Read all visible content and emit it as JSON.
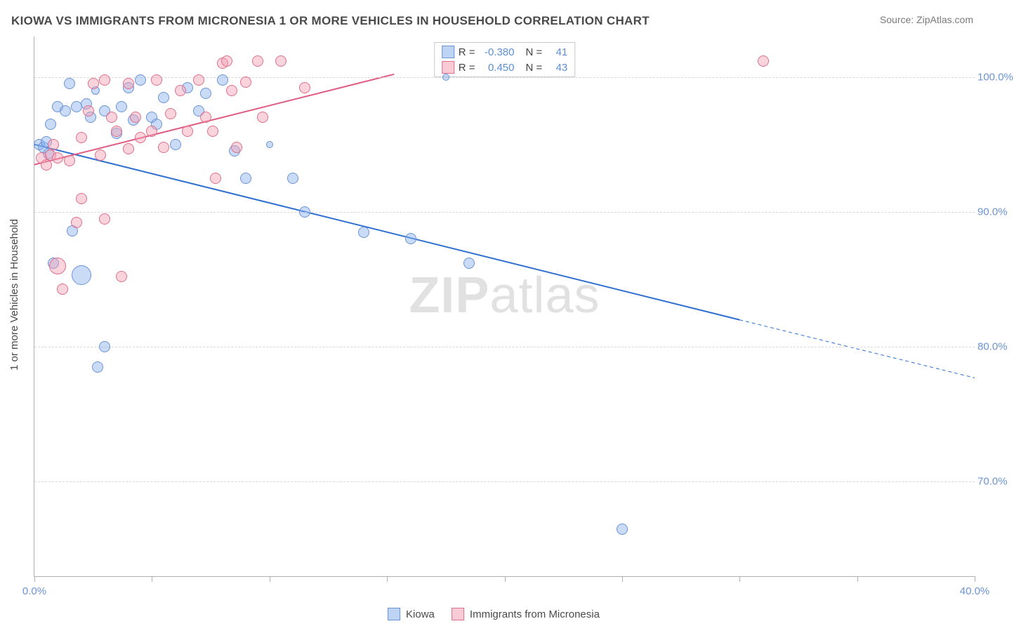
{
  "title": "KIOWA VS IMMIGRANTS FROM MICRONESIA 1 OR MORE VEHICLES IN HOUSEHOLD CORRELATION CHART",
  "source": "Source: ZipAtlas.com",
  "ylabel": "1 or more Vehicles in Household",
  "watermark_a": "ZIP",
  "watermark_b": "atlas",
  "chart": {
    "type": "scatter",
    "background_color": "#ffffff",
    "grid_color": "#d8d8d8",
    "axis_color": "#b0b0b0",
    "tick_label_color": "#6b94d6",
    "label_fontsize": 15,
    "title_fontsize": 17,
    "xlim": [
      0,
      40
    ],
    "xticks": [
      0,
      5,
      10,
      15,
      20,
      25,
      30,
      35,
      40
    ],
    "xlabels": {
      "0": "0.0%",
      "40": "40.0%"
    },
    "ylim": [
      63,
      103
    ],
    "yticks": [
      70,
      80,
      90,
      100
    ],
    "ylabel_fmt": [
      {
        "v": 70,
        "t": "70.0%"
      },
      {
        "v": 80,
        "t": "80.0%"
      },
      {
        "v": 90,
        "t": "90.0%"
      },
      {
        "v": 100,
        "t": "100.0%"
      }
    ],
    "series": [
      {
        "name": "Kiowa",
        "marker": "circle",
        "size": 16,
        "fill": "rgba(135,176,235,0.45)",
        "stroke": "#6b94d6",
        "trend_color": "#2f6fd1",
        "trend_width": 2,
        "trend": {
          "x1": 0,
          "y1": 95.0,
          "x2": 30,
          "y2": 82.0
        },
        "trend_ext": {
          "x1": 30,
          "y1": 82.0,
          "x2": 40,
          "y2": 77.7,
          "dash": "5,4"
        },
        "points": [
          [
            0.2,
            95.0
          ],
          [
            0.4,
            94.8
          ],
          [
            0.5,
            95.2
          ],
          [
            0.6,
            94.3
          ],
          [
            0.7,
            96.5
          ],
          [
            0.8,
            86.2
          ],
          [
            1.0,
            97.8
          ],
          [
            1.3,
            97.5
          ],
          [
            1.5,
            99.5
          ],
          [
            1.6,
            88.6
          ],
          [
            1.8,
            97.8
          ],
          [
            2.0,
            85.3,
            28
          ],
          [
            2.2,
            98.0
          ],
          [
            2.4,
            97.0
          ],
          [
            2.6,
            99.0,
            12
          ],
          [
            2.7,
            78.5
          ],
          [
            3.0,
            80.0
          ],
          [
            3.0,
            97.5
          ],
          [
            3.5,
            95.8
          ],
          [
            3.7,
            97.8
          ],
          [
            4.0,
            99.2
          ],
          [
            4.2,
            96.8
          ],
          [
            4.5,
            99.8
          ],
          [
            5.0,
            97.0
          ],
          [
            5.2,
            96.5
          ],
          [
            5.5,
            98.5
          ],
          [
            6.0,
            95.0
          ],
          [
            6.5,
            99.2
          ],
          [
            7.0,
            97.5
          ],
          [
            7.3,
            98.8
          ],
          [
            8.0,
            99.8
          ],
          [
            8.5,
            94.5
          ],
          [
            9.0,
            92.5
          ],
          [
            10.0,
            95.0,
            10
          ],
          [
            11.0,
            92.5
          ],
          [
            11.5,
            90.0
          ],
          [
            14.0,
            88.5
          ],
          [
            16.0,
            88.0
          ],
          [
            17.5,
            100.0,
            10
          ],
          [
            18.5,
            86.2
          ],
          [
            25.0,
            66.5
          ]
        ]
      },
      {
        "name": "Immigrants from Micronesia",
        "marker": "circle",
        "size": 16,
        "fill": "rgba(244,160,180,0.45)",
        "stroke": "#e06f8b",
        "trend_color": "#e05b82",
        "trend_width": 2,
        "trend": {
          "x1": 0,
          "y1": 93.5,
          "x2": 15.3,
          "y2": 100.2
        },
        "points": [
          [
            0.3,
            94.0
          ],
          [
            0.5,
            93.5
          ],
          [
            0.7,
            94.2
          ],
          [
            0.8,
            95.0
          ],
          [
            1.0,
            94.0
          ],
          [
            1.0,
            86.0,
            24
          ],
          [
            1.2,
            84.3
          ],
          [
            1.5,
            93.8
          ],
          [
            1.8,
            89.2
          ],
          [
            2.0,
            91.0
          ],
          [
            2.0,
            95.5
          ],
          [
            2.3,
            97.5
          ],
          [
            2.5,
            99.5
          ],
          [
            2.8,
            94.2
          ],
          [
            3.0,
            99.8
          ],
          [
            3.0,
            89.5
          ],
          [
            3.3,
            97.0
          ],
          [
            3.5,
            96.0
          ],
          [
            3.7,
            85.2
          ],
          [
            4.0,
            99.5
          ],
          [
            4.0,
            94.7
          ],
          [
            4.3,
            97.0
          ],
          [
            4.5,
            95.5
          ],
          [
            5.0,
            96.0
          ],
          [
            5.2,
            99.8
          ],
          [
            5.5,
            94.8
          ],
          [
            5.8,
            97.3
          ],
          [
            6.2,
            99.0
          ],
          [
            6.5,
            96.0
          ],
          [
            7.0,
            99.8
          ],
          [
            7.3,
            97.0
          ],
          [
            7.6,
            96.0
          ],
          [
            7.7,
            92.5
          ],
          [
            8.0,
            101.0
          ],
          [
            8.2,
            101.2
          ],
          [
            8.4,
            99.0
          ],
          [
            8.6,
            94.8
          ],
          [
            9.0,
            99.6
          ],
          [
            9.5,
            101.2
          ],
          [
            9.7,
            97.0
          ],
          [
            10.5,
            101.2
          ],
          [
            11.5,
            99.2
          ],
          [
            31.0,
            101.2
          ]
        ]
      }
    ]
  },
  "legend_top": {
    "border_color": "#c9c9c9",
    "rows": [
      {
        "sw_fill": "rgba(135,176,235,0.55)",
        "sw_stroke": "#6b94d6",
        "r_label": "R =",
        "r_val": "-0.380",
        "n_label": "N =",
        "n_val": "41"
      },
      {
        "sw_fill": "rgba(244,160,180,0.55)",
        "sw_stroke": "#e06f8b",
        "r_label": "R =",
        "r_val": "0.450",
        "n_label": "N =",
        "n_val": "43"
      }
    ]
  },
  "legend_bottom": {
    "items": [
      {
        "sw_fill": "rgba(135,176,235,0.55)",
        "sw_stroke": "#6b94d6",
        "label": "Kiowa"
      },
      {
        "sw_fill": "rgba(244,160,180,0.55)",
        "sw_stroke": "#e06f8b",
        "label": "Immigrants from Micronesia"
      }
    ]
  }
}
